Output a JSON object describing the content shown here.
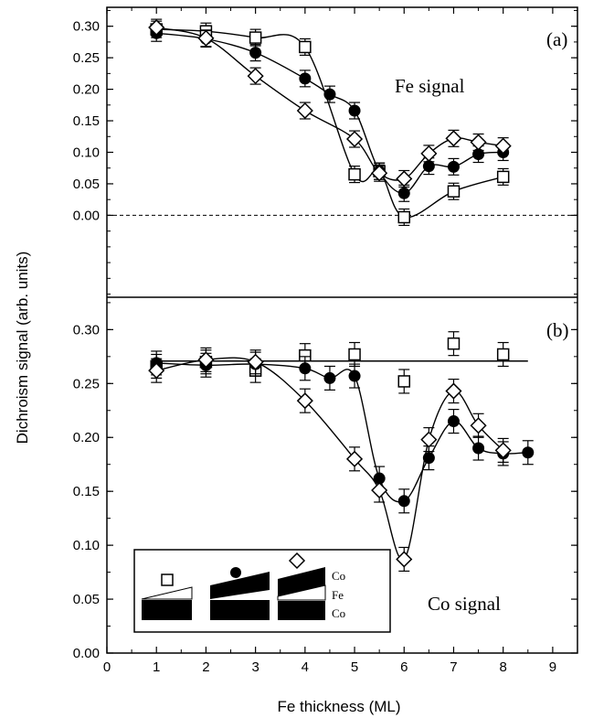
{
  "chart_data": [
    {
      "panel": "a",
      "type": "scatter",
      "panel_label": "(a)",
      "annotation": "Fe signal",
      "ylim": [
        -0.13,
        0.33
      ],
      "yticks": [
        "0.00",
        "0.05",
        "0.10",
        "0.15",
        "0.20",
        "0.25",
        "0.30"
      ],
      "reference_line": {
        "y": 0.0,
        "style": "dashed"
      },
      "series": [
        {
          "marker": "open-square",
          "x": [
            1,
            2,
            3,
            4,
            5,
            5.5,
            6,
            7,
            8
          ],
          "y": [
            0.295,
            0.292,
            0.282,
            0.267,
            0.065,
            0.07,
            -0.003,
            0.038,
            0.061
          ],
          "error": 0.013
        },
        {
          "marker": "filled-circle",
          "x": [
            1,
            2,
            3,
            4,
            4.5,
            5,
            5.5,
            6,
            6.5,
            7,
            7.5,
            8
          ],
          "y": [
            0.289,
            0.28,
            0.258,
            0.217,
            0.192,
            0.166,
            0.07,
            0.035,
            0.078,
            0.077,
            0.097,
            0.1
          ],
          "error": 0.013
        },
        {
          "marker": "open-diamond",
          "x": [
            1,
            2,
            3,
            4,
            5,
            5.5,
            6,
            6.5,
            7,
            7.5,
            8
          ],
          "y": [
            0.298,
            0.281,
            0.221,
            0.166,
            0.121,
            0.067,
            0.058,
            0.098,
            0.122,
            0.116,
            0.11
          ],
          "error": 0.013
        }
      ]
    },
    {
      "panel": "b",
      "type": "scatter",
      "panel_label": "(b)",
      "annotation": "Co signal",
      "ylim": [
        0.0,
        0.33
      ],
      "yticks": [
        "0.00",
        "0.05",
        "0.10",
        "0.15",
        "0.20",
        "0.25",
        "0.30"
      ],
      "series": [
        {
          "marker": "open-square",
          "x": [
            1,
            2,
            3,
            4,
            5,
            6,
            7,
            8
          ],
          "y": [
            0.266,
            0.27,
            0.262,
            0.276,
            0.277,
            0.252,
            0.287,
            0.277
          ],
          "error": 0.011,
          "fit": "flat"
        },
        {
          "marker": "filled-circle",
          "x": [
            1,
            2,
            3,
            4,
            4.5,
            5,
            5.5,
            6,
            6.5,
            7,
            7.5,
            8,
            8.5
          ],
          "y": [
            0.269,
            0.267,
            0.268,
            0.264,
            0.255,
            0.257,
            0.162,
            0.141,
            0.181,
            0.215,
            0.19,
            0.185,
            0.186
          ],
          "error": 0.011
        },
        {
          "marker": "open-diamond",
          "x": [
            1,
            2,
            3,
            4,
            5,
            5.5,
            6,
            6.5,
            7,
            7.5,
            8
          ],
          "y": [
            0.262,
            0.272,
            0.27,
            0.234,
            0.18,
            0.151,
            0.087,
            0.198,
            0.243,
            0.211,
            0.188
          ],
          "error": 0.011
        }
      ]
    }
  ],
  "axes": {
    "xlabel": "Fe thickness (ML)",
    "ylabel": "Dichroism signal (arb. units)",
    "xlim": [
      0,
      9.5
    ],
    "xticks": [
      "0",
      "1",
      "2",
      "3",
      "4",
      "5",
      "6",
      "7",
      "8",
      "9"
    ]
  },
  "inset": {
    "labels": [
      "Co",
      "Fe",
      "Co"
    ],
    "legend_markers": [
      "open-square",
      "filled-circle",
      "open-diamond"
    ]
  }
}
